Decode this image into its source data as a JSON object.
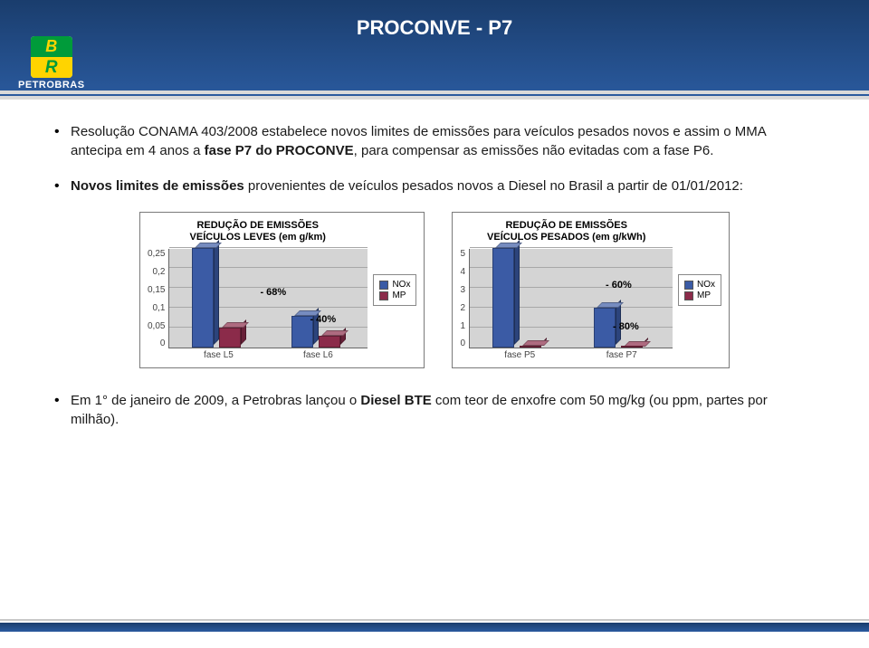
{
  "header": {
    "title": "PROCONVE - P7",
    "logo_top": "B",
    "logo_bot": "R",
    "brand": "PETROBRAS"
  },
  "bullets": {
    "b1_pre": "Resolução CONAMA 403/2008 estabelece novos limites de emissões para veículos pesados novos e assim o MMA antecipa em 4 anos a ",
    "b1_bold": "fase P7 do PROCONVE",
    "b1_post": ", para compensar as emissões não evitadas com a fase P6.",
    "b2_bold": "Novos limites de emissões ",
    "b2_post": "provenientes de veículos pesados novos a Diesel no Brasil a partir de 01/01/2012:",
    "b3_pre": "Em 1° de janeiro de 2009, a Petrobras lançou o ",
    "b3_bold": "Diesel BTE",
    "b3_post": " com teor de enxofre com 50 mg/kg (ou ppm, partes por milhão)."
  },
  "chart1": {
    "title_l1": "REDUÇÃO DE EMISSÕES",
    "title_l2": "VEÍCULOS LEVES (em g/km)",
    "ymax": 0.25,
    "ystep": 0.05,
    "yticks": [
      "0",
      "0,05",
      "0,1",
      "0,15",
      "0,2",
      "0,25"
    ],
    "categories": [
      "fase L5",
      "fase L6"
    ],
    "nox": [
      0.25,
      0.08
    ],
    "mp": [
      0.05,
      0.03
    ],
    "nox_color": "#3b5ba5",
    "mp_color": "#8b2b4a",
    "anno1": "- 68%",
    "anno2": "- 40%",
    "legend_nox": "NOx",
    "legend_mp": "MP"
  },
  "chart2": {
    "title_l1": "REDUÇÃO DE EMISSÕES",
    "title_l2": "VEÍCULOS PESADOS (em g/kWh)",
    "ymax": 5,
    "ystep": 1,
    "yticks": [
      "0",
      "1",
      "2",
      "3",
      "4",
      "5"
    ],
    "categories": [
      "fase P5",
      "fase P7"
    ],
    "nox": [
      5,
      2
    ],
    "mp": [
      0.1,
      0.02
    ],
    "nox_color": "#3b5ba5",
    "mp_color": "#8b2b4a",
    "anno1": "- 60%",
    "anno2": "- 80%",
    "legend_nox": "NOx",
    "legend_mp": "MP"
  }
}
